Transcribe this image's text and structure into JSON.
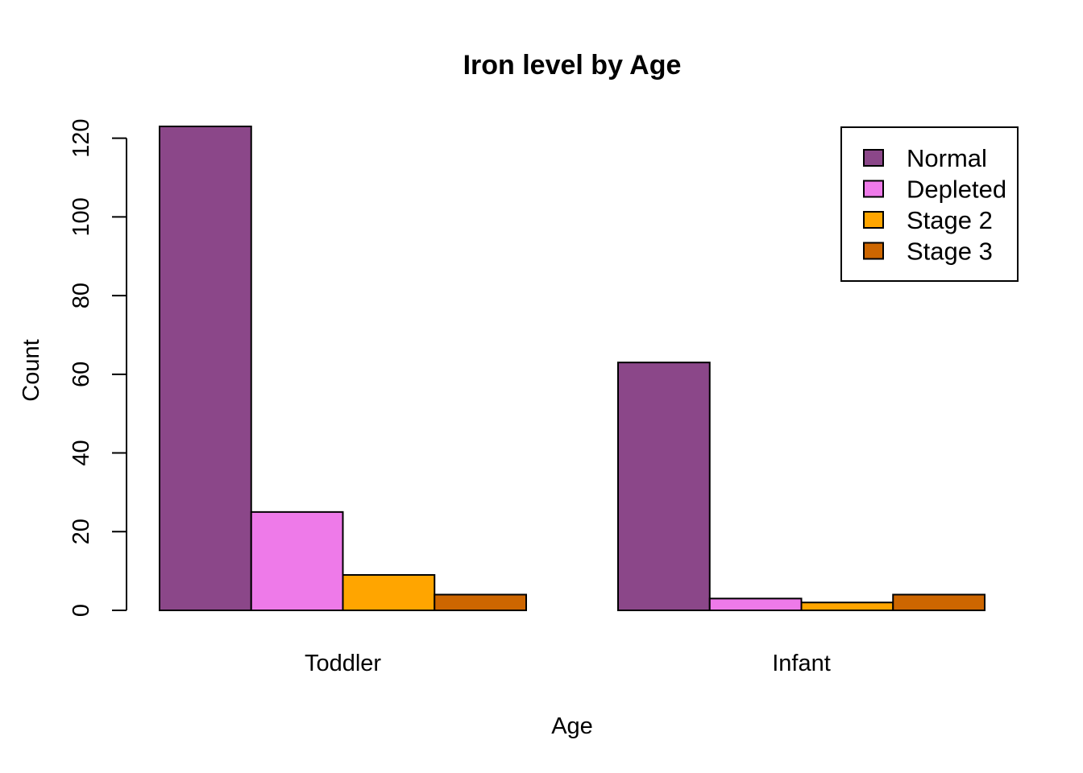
{
  "chart_data": {
    "type": "bar",
    "title": "Iron level by Age",
    "xlabel": "Age",
    "ylabel": "Count",
    "categories": [
      "Toddler",
      "Infant"
    ],
    "series": [
      {
        "name": "Normal",
        "color": "#8B4789",
        "values": [
          123,
          63
        ]
      },
      {
        "name": "Depleted",
        "color": "#EE7AE9",
        "values": [
          25,
          3
        ]
      },
      {
        "name": "Stage 2",
        "color": "#FFA500",
        "values": [
          9,
          2
        ]
      },
      {
        "name": "Stage 3",
        "color": "#CD6600",
        "values": [
          4,
          4
        ]
      }
    ],
    "yticks": [
      0,
      20,
      40,
      60,
      80,
      100,
      120
    ],
    "ylim": [
      0,
      123
    ],
    "grid": false,
    "legend_position": "top-right",
    "layout": "grouped"
  }
}
